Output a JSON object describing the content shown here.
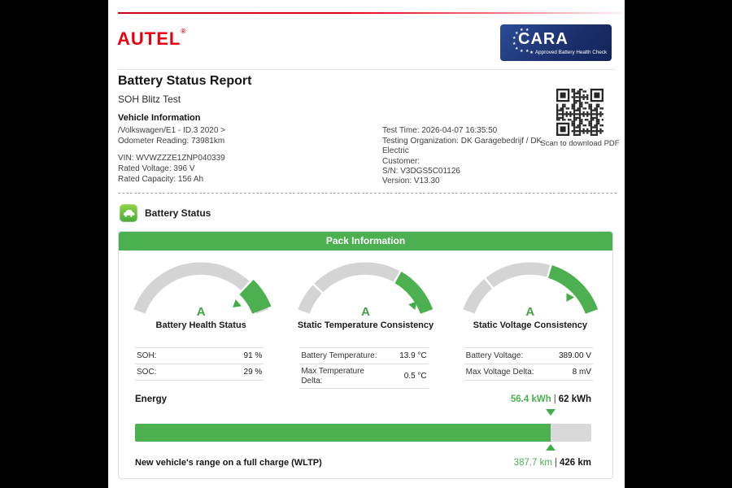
{
  "header": {
    "brand": "AUTEL",
    "brand_mark": "®",
    "cara_name": "CARA",
    "cara_tagline": "Approved Battery Health Check",
    "accent_red": "#e60012",
    "cara_navy": "#1b2f6b"
  },
  "report": {
    "title": "Battery Status Report",
    "subtitle": "SOH Blitz Test"
  },
  "vehicle": {
    "heading": "Vehicle Information",
    "model_path": "/Volkswagen/E1 - ID.3 2020 >",
    "odometer": "Odometer Reading: 73981km",
    "vin": "VIN: WVWZZZE1ZNP040339",
    "rated_voltage": "Rated Voltage: 396 V",
    "rated_capacity": "Rated Capacity: 156 Ah",
    "test_time": "Test Time: 2026-04-07 16:35:50",
    "testing_org": "Testing Organization: DK Garagebedrijf / DK Electric",
    "customer": "Customer:",
    "serial_number": "S/N: V3DGS5C01126",
    "version": "Version: V13.30",
    "qr_caption": "Scan to download PDF"
  },
  "battery": {
    "section_title": "Battery Status",
    "pack_header": "Pack Information",
    "green": "#4caf50",
    "gauges": [
      {
        "grade": "A",
        "label": "Battery Health Status",
        "green_start": 0.81,
        "green_end": 0.99,
        "green_width": 26,
        "gaps": [
          0.81
        ],
        "pointer": {
          "frac": 0.84,
          "radius": 58,
          "rot": 20
        }
      },
      {
        "grade": "A",
        "label": "Static Temperature Consistency",
        "green_start": 0.71,
        "green_end": 1.0,
        "green_width": 17,
        "gaps": [
          0.17,
          0.71
        ],
        "pointer": {
          "frac": 0.93,
          "radius": 69,
          "rot": -50
        }
      },
      {
        "grade": "A",
        "label": "Static Voltage Consistency",
        "green_start": 0.62,
        "green_end": 1.0,
        "green_width": 17,
        "gaps": [
          0.22,
          0.62
        ],
        "pointer": {
          "frac": 0.82,
          "radius": 66,
          "rot": 0
        }
      }
    ],
    "stats": {
      "soh": {
        "label": "SOH:",
        "value": "91 %"
      },
      "soc": {
        "label": "SOC:",
        "value": "29 %"
      },
      "battery_temperature": {
        "label": "Battery Temperature:",
        "value": "13.9 °C"
      },
      "max_temperature_delta": {
        "label": "Max Temperature Delta:",
        "value": "0.5 °C"
      },
      "battery_voltage": {
        "label": "Battery Voltage:",
        "value": "389.00 V"
      },
      "max_voltage_delta": {
        "label": "Max Voltage Delta:",
        "value": "8 mV"
      }
    },
    "energy": {
      "label": "Energy",
      "current": "56.4 kWh",
      "separator": "|",
      "total": "62 kWh",
      "percent": 91
    },
    "range": {
      "label": "New vehicle's range on a full charge (WLTP)",
      "current": "387.7 km",
      "separator": "|",
      "total": "426 km"
    }
  }
}
